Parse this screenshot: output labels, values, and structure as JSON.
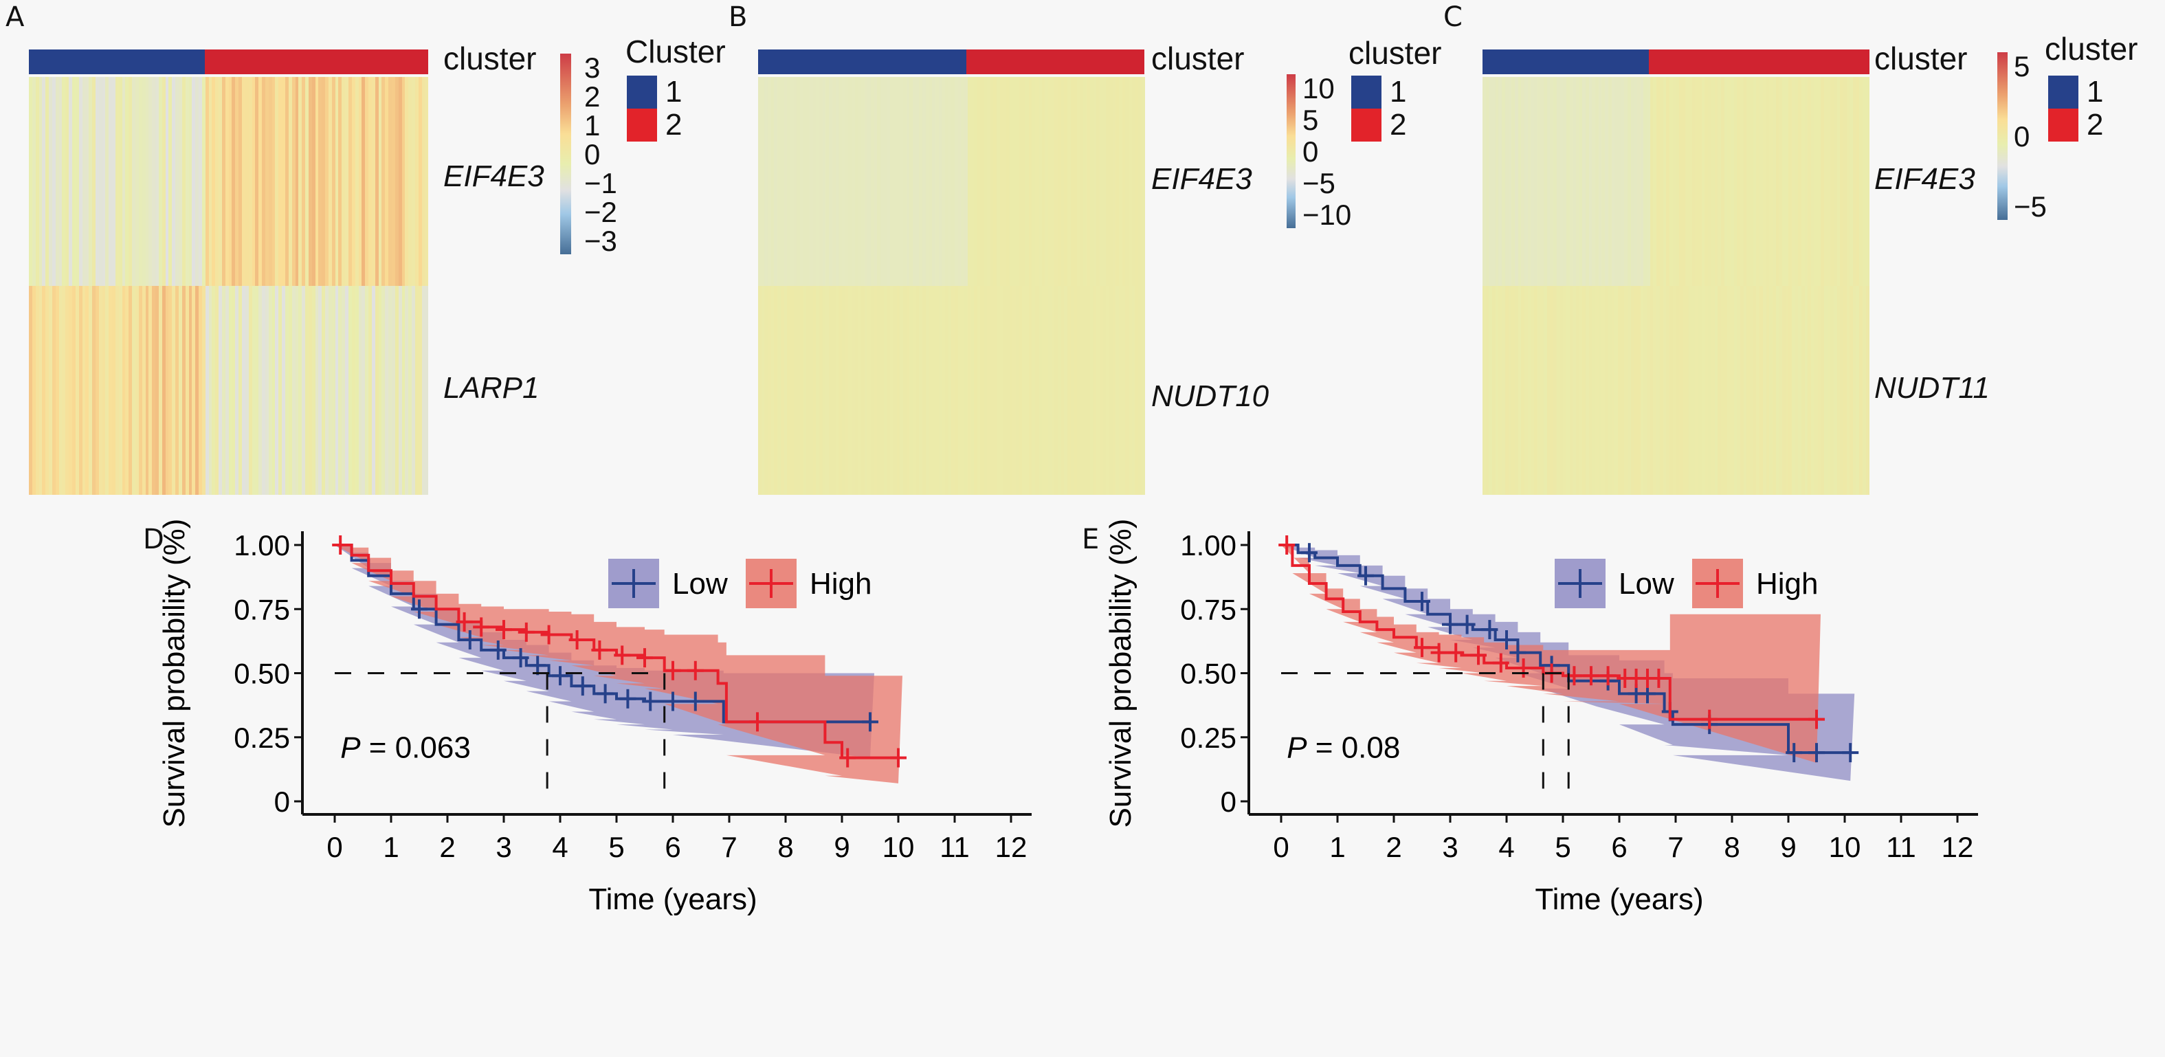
{
  "colors": {
    "cluster1": "#26418a",
    "cluster2": "#d02330",
    "low_line": "#26418a",
    "high_line": "#e8202c",
    "low_band": "#8f8cc4",
    "high_band": "#e8756a"
  },
  "chart_data": [
    {
      "type": "heatmap",
      "panel": "A",
      "annotation_label": "cluster",
      "rows": [
        "EIF4E3",
        "LARP1"
      ],
      "column_groups": [
        {
          "cluster": "1",
          "fraction": 0.44
        },
        {
          "cluster": "2",
          "fraction": 0.56
        }
      ],
      "summary": {
        "EIF4E3": {
          "cluster1": -0.3,
          "cluster2": 0.9
        },
        "LARP1": {
          "cluster1": 0.9,
          "cluster2": -0.3
        }
      },
      "colorbar": {
        "ticks": [
          "3",
          "2",
          "1",
          "0",
          "−1",
          "−2",
          "−3"
        ],
        "range": [
          -3,
          3
        ]
      },
      "legend": {
        "title": "Cluster",
        "entries": [
          "1",
          "2"
        ]
      }
    },
    {
      "type": "heatmap",
      "panel": "B",
      "annotation_label": "cluster",
      "rows": [
        "EIF4E3",
        "NUDT10"
      ],
      "column_groups": [
        {
          "cluster": "1",
          "fraction": 0.54
        },
        {
          "cluster": "2",
          "fraction": 0.46
        }
      ],
      "summary": {
        "EIF4E3": {
          "cluster1": -0.3,
          "cluster2": 0.2
        },
        "NUDT10": {
          "cluster1": 0.2,
          "cluster2": 0.2
        }
      },
      "colorbar": {
        "ticks": [
          "10",
          "5",
          "0",
          "−5",
          "−10"
        ],
        "range": [
          -12,
          12
        ]
      },
      "legend": {
        "title": "cluster",
        "entries": [
          "1",
          "2"
        ]
      }
    },
    {
      "type": "heatmap",
      "panel": "C",
      "annotation_label": "cluster",
      "rows": [
        "EIF4E3",
        "NUDT11"
      ],
      "column_groups": [
        {
          "cluster": "1",
          "fraction": 0.43
        },
        {
          "cluster": "2",
          "fraction": 0.57
        }
      ],
      "summary": {
        "EIF4E3": {
          "cluster1": -0.3,
          "cluster2": 0.2
        },
        "NUDT11": {
          "cluster1": 0.2,
          "cluster2": 0.2
        }
      },
      "colorbar": {
        "ticks": [
          "5",
          "0",
          "−5"
        ],
        "range": [
          -7,
          7
        ]
      },
      "legend": {
        "title": "cluster",
        "entries": [
          "1",
          "2"
        ]
      }
    },
    {
      "type": "line",
      "panel": "D",
      "xlabel": "Time (years)",
      "ylabel": "Survival probability (%)",
      "xlim": [
        0,
        12
      ],
      "ylim": [
        0,
        1
      ],
      "xticks": [
        "0",
        "1",
        "2",
        "3",
        "4",
        "5",
        "6",
        "7",
        "8",
        "9",
        "10",
        "11",
        "12"
      ],
      "yticks": [
        "0",
        "0.25",
        "0.50",
        "0.75",
        "1.00"
      ],
      "annotation": {
        "p_label": "P",
        "p_value": "= 0.063"
      },
      "median_line": 0.5,
      "medians": {
        "Low": 3.77,
        "High": 5.85
      },
      "legend": [
        "Low",
        "High"
      ],
      "series": [
        {
          "name": "Low",
          "x": [
            0,
            0.3,
            0.6,
            1.0,
            1.4,
            1.8,
            2.2,
            2.6,
            3.0,
            3.4,
            3.8,
            4.2,
            4.6,
            5.0,
            5.5,
            6.0,
            6.9,
            9.5
          ],
          "y": [
            1.0,
            0.94,
            0.88,
            0.81,
            0.75,
            0.69,
            0.63,
            0.59,
            0.56,
            0.53,
            0.49,
            0.45,
            0.42,
            0.4,
            0.39,
            0.39,
            0.31,
            0.31
          ],
          "lower": [
            1.0,
            0.91,
            0.84,
            0.76,
            0.69,
            0.62,
            0.56,
            0.51,
            0.47,
            0.43,
            0.39,
            0.35,
            0.32,
            0.3,
            0.28,
            0.26,
            0.17,
            0.17
          ],
          "upper": [
            1.0,
            0.97,
            0.93,
            0.86,
            0.81,
            0.75,
            0.7,
            0.66,
            0.63,
            0.61,
            0.58,
            0.55,
            0.53,
            0.52,
            0.51,
            0.51,
            0.5,
            0.5
          ],
          "censored_x": [
            1.5,
            2.4,
            2.9,
            3.3,
            3.6,
            4.0,
            4.4,
            4.8,
            5.2,
            5.6,
            6.0,
            6.4,
            9.5
          ]
        },
        {
          "name": "High",
          "x": [
            0,
            0.3,
            0.6,
            1.0,
            1.4,
            1.8,
            2.2,
            2.6,
            3.0,
            3.4,
            3.8,
            4.2,
            4.6,
            5.0,
            5.5,
            5.85,
            6.8,
            6.95,
            8.7,
            9.0,
            10.0
          ],
          "y": [
            1.0,
            0.96,
            0.9,
            0.85,
            0.8,
            0.75,
            0.7,
            0.68,
            0.67,
            0.66,
            0.65,
            0.63,
            0.59,
            0.57,
            0.56,
            0.51,
            0.46,
            0.31,
            0.23,
            0.17,
            0.17
          ],
          "lower": [
            1.0,
            0.93,
            0.86,
            0.8,
            0.74,
            0.69,
            0.64,
            0.61,
            0.59,
            0.57,
            0.55,
            0.53,
            0.49,
            0.46,
            0.44,
            0.38,
            0.3,
            0.18,
            0.1,
            0.07,
            0.07
          ],
          "upper": [
            1.0,
            0.99,
            0.95,
            0.9,
            0.86,
            0.81,
            0.77,
            0.76,
            0.75,
            0.75,
            0.74,
            0.73,
            0.7,
            0.68,
            0.67,
            0.65,
            0.62,
            0.57,
            0.49,
            0.49,
            0.49
          ],
          "censored_x": [
            0.1,
            2.3,
            2.6,
            3.0,
            3.4,
            3.8,
            4.3,
            4.7,
            5.1,
            5.5,
            6.0,
            6.4,
            7.5,
            9.1,
            10.0
          ]
        }
      ]
    },
    {
      "type": "line",
      "panel": "E",
      "xlabel": "Time (years)",
      "ylabel": "Survival probability (%)",
      "xlim": [
        0,
        12
      ],
      "ylim": [
        0,
        1
      ],
      "xticks": [
        "0",
        "1",
        "2",
        "3",
        "4",
        "5",
        "6",
        "7",
        "8",
        "9",
        "10",
        "11",
        "12"
      ],
      "yticks": [
        "0",
        "0.25",
        "0.50",
        "0.75",
        "1.00"
      ],
      "annotation": {
        "p_label": "P",
        "p_value": "= 0.08"
      },
      "median_line": 0.5,
      "medians": {
        "Low": 5.1,
        "High": 4.65
      },
      "legend": [
        "Low",
        "High"
      ],
      "series": [
        {
          "name": "Low",
          "x": [
            0,
            0.3,
            0.6,
            1.0,
            1.4,
            1.8,
            2.2,
            2.6,
            3.0,
            3.4,
            3.8,
            4.2,
            4.6,
            5.1,
            5.6,
            6.0,
            6.8,
            6.95,
            9.0,
            10.1
          ],
          "y": [
            1.0,
            0.97,
            0.95,
            0.92,
            0.88,
            0.83,
            0.78,
            0.73,
            0.69,
            0.67,
            0.63,
            0.58,
            0.53,
            0.47,
            0.47,
            0.42,
            0.35,
            0.3,
            0.19,
            0.19
          ],
          "lower": [
            1.0,
            0.95,
            0.92,
            0.89,
            0.84,
            0.79,
            0.73,
            0.68,
            0.63,
            0.6,
            0.56,
            0.5,
            0.44,
            0.37,
            0.37,
            0.3,
            0.22,
            0.18,
            0.08,
            0.08
          ],
          "upper": [
            1.0,
            0.99,
            0.98,
            0.96,
            0.92,
            0.88,
            0.83,
            0.79,
            0.75,
            0.73,
            0.7,
            0.66,
            0.62,
            0.57,
            0.57,
            0.55,
            0.5,
            0.48,
            0.42,
            0.42
          ],
          "censored_x": [
            0.5,
            1.5,
            2.5,
            3.0,
            3.3,
            3.7,
            4.0,
            4.2,
            4.8,
            5.8,
            6.3,
            6.5,
            6.9,
            7.6,
            9.1,
            9.5,
            10.1
          ]
        },
        {
          "name": "High",
          "x": [
            0,
            0.2,
            0.5,
            0.8,
            1.1,
            1.4,
            1.7,
            2.0,
            2.4,
            2.8,
            3.2,
            3.6,
            4.0,
            4.65,
            5.0,
            6.0,
            6.9,
            9.5
          ],
          "y": [
            1.0,
            0.92,
            0.85,
            0.79,
            0.74,
            0.7,
            0.67,
            0.64,
            0.6,
            0.58,
            0.57,
            0.54,
            0.52,
            0.5,
            0.49,
            0.48,
            0.32,
            0.32
          ],
          "lower": [
            1.0,
            0.89,
            0.81,
            0.75,
            0.7,
            0.66,
            0.62,
            0.58,
            0.54,
            0.52,
            0.5,
            0.47,
            0.45,
            0.42,
            0.39,
            0.38,
            0.15,
            0.15
          ],
          "upper": [
            1.0,
            0.95,
            0.89,
            0.83,
            0.79,
            0.75,
            0.72,
            0.69,
            0.66,
            0.65,
            0.64,
            0.62,
            0.61,
            0.59,
            0.59,
            0.59,
            0.73,
            0.73
          ],
          "censored_x": [
            0.1,
            2.5,
            2.8,
            3.1,
            3.5,
            3.9,
            4.3,
            4.8,
            5.2,
            5.5,
            5.8,
            6.1,
            6.3,
            6.5,
            6.7,
            7.6,
            9.5
          ]
        }
      ]
    }
  ],
  "panels": {
    "A": {
      "letter": "A",
      "annotation": "cluster",
      "row1": "EIF4E3",
      "row2": "LARP1",
      "cb_ticks": [
        "3",
        "2",
        "1",
        "0",
        "−1",
        "−2",
        "−3"
      ],
      "legend_title": "Cluster",
      "legend_1": "1",
      "legend_2": "2"
    },
    "B": {
      "letter": "B",
      "annotation": "cluster",
      "row1": "EIF4E3",
      "row2": "NUDT10",
      "cb_ticks": [
        "10",
        "5",
        "0",
        "−5",
        "−10"
      ],
      "legend_title": "cluster",
      "legend_1": "1",
      "legend_2": "2"
    },
    "C": {
      "letter": "C",
      "annotation": "cluster",
      "row1": "EIF4E3",
      "row2": "NUDT11",
      "cb_ticks": [
        "5",
        "0",
        "−5"
      ],
      "legend_title": "cluster",
      "legend_1": "1",
      "legend_2": "2"
    },
    "D": {
      "letter": "D"
    },
    "E": {
      "letter": "E"
    }
  }
}
